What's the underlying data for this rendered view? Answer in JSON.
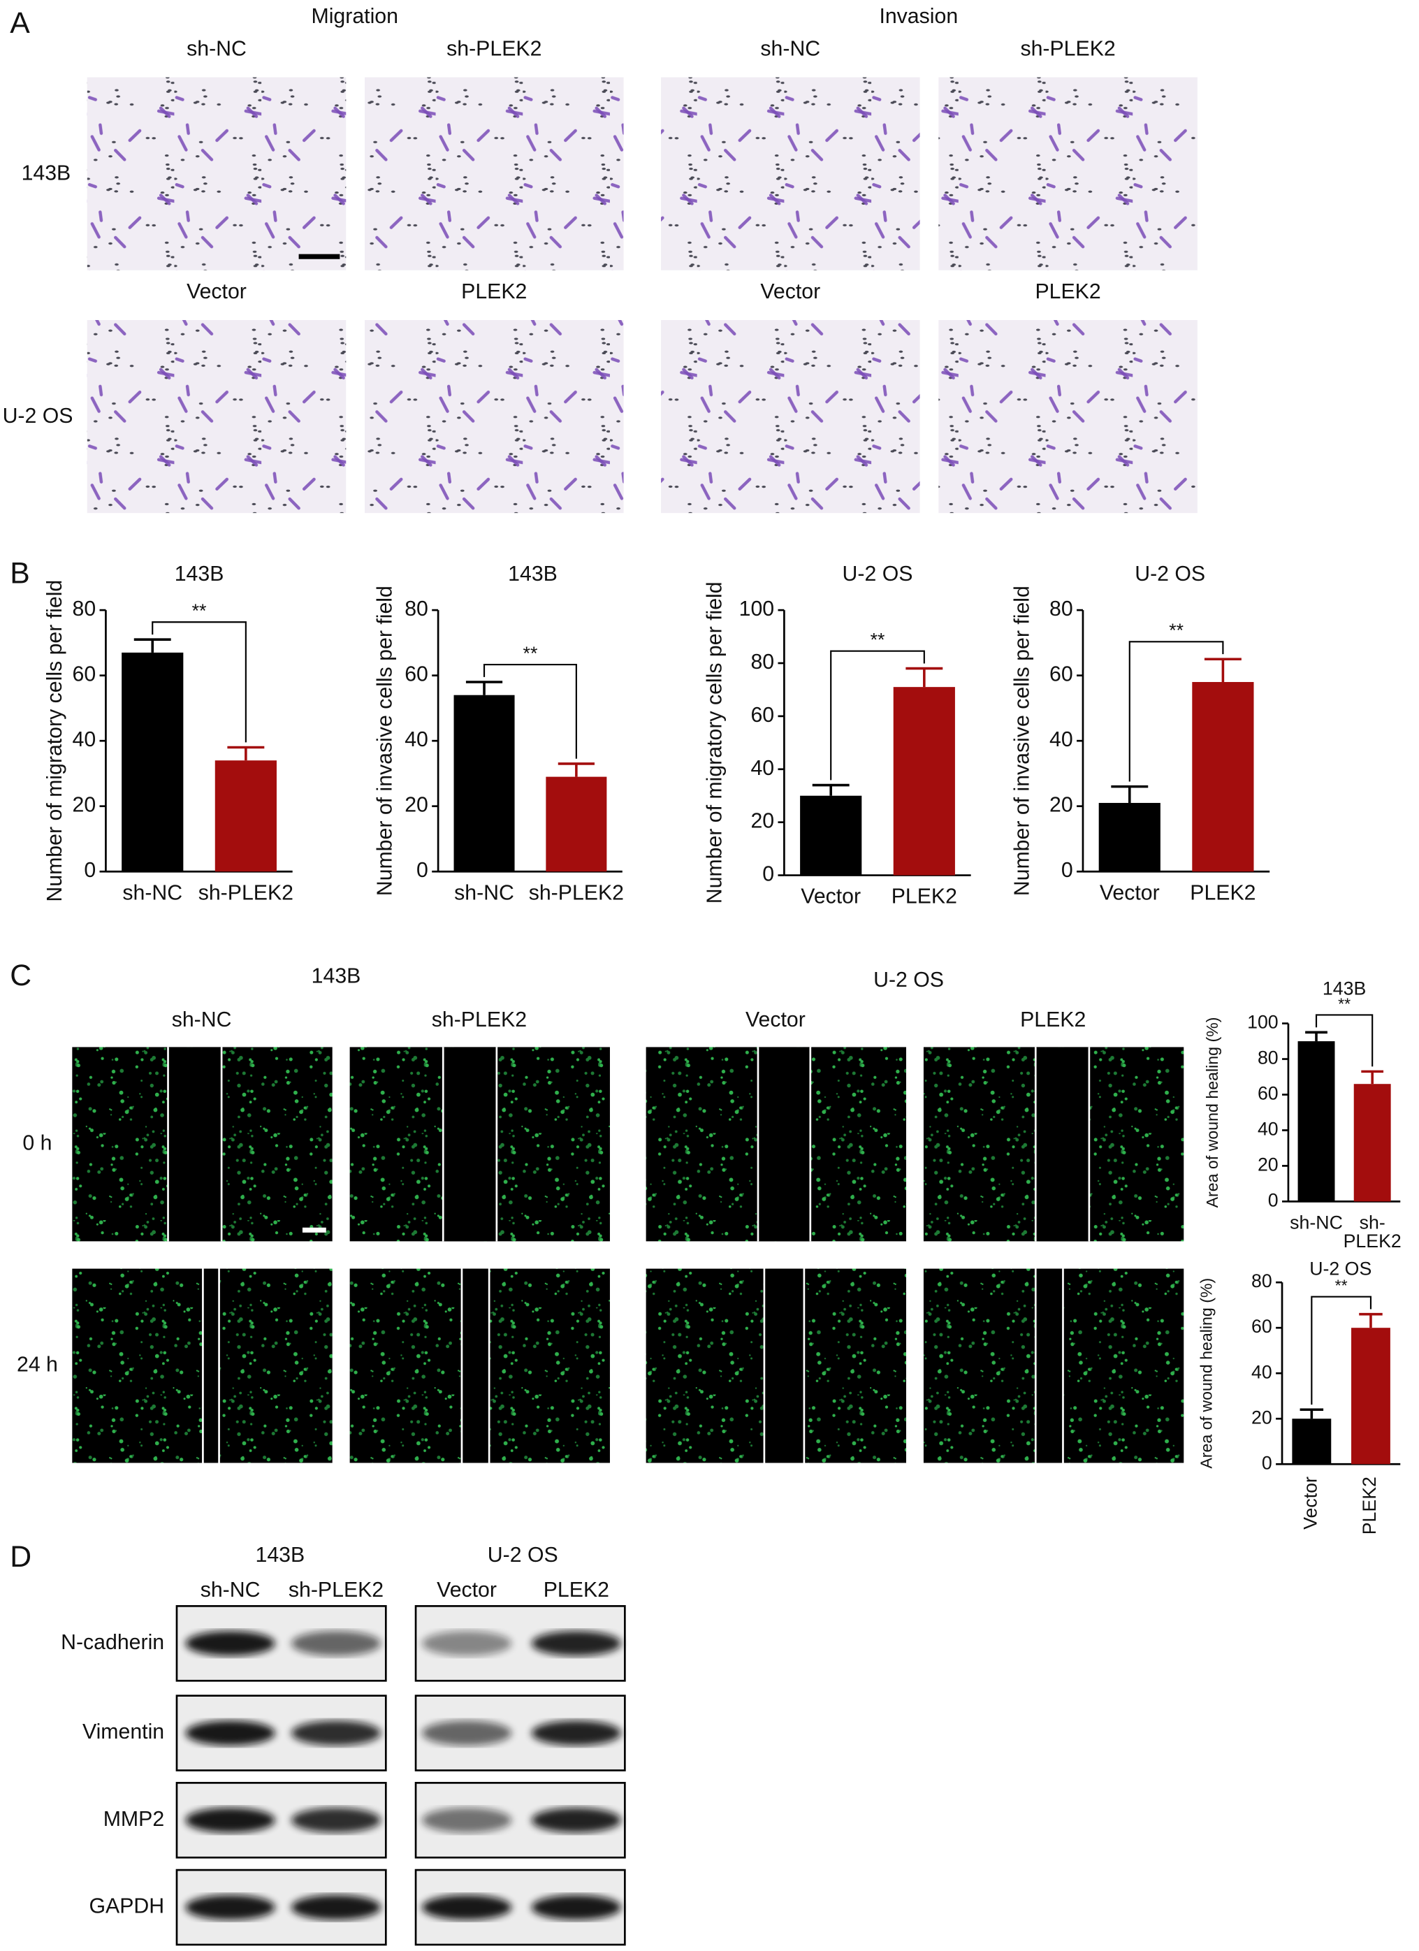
{
  "panel_a": {
    "label": "A",
    "groups": [
      "Migration",
      "Invasion"
    ],
    "rows": [
      {
        "label": "143B",
        "columns": [
          "sh-NC",
          "sh-PLEK2",
          "sh-NC",
          "sh-PLEK2"
        ]
      },
      {
        "label": "U-2 OS",
        "columns": [
          "Vector",
          "PLEK2",
          "Vector",
          "PLEK2"
        ]
      }
    ]
  },
  "panel_b": {
    "label": "B"
  },
  "panel_c": {
    "label": "C",
    "groups": [
      "143B",
      "U-2 OS"
    ],
    "columns": [
      "sh-NC",
      "sh-PLEK2",
      "Vector",
      "PLEK2"
    ],
    "rows": [
      "0 h",
      "24 h"
    ]
  },
  "panel_d": {
    "label": "D",
    "groups": [
      "143B",
      "U-2 OS"
    ],
    "lanes": [
      "sh-NC",
      "sh-PLEK2",
      "Vector",
      "PLEK2"
    ],
    "proteins": [
      "N-cadherin",
      "Vimentin",
      "MMP2",
      "GAPDH"
    ]
  },
  "chart_data": [
    {
      "type": "bar",
      "title": "143B",
      "y_label": "Number of migratory cells per field",
      "categories": [
        "sh-NC",
        "sh-PLEK2"
      ],
      "values": [
        67,
        34
      ],
      "errors": [
        4,
        4
      ],
      "colors": [
        "#000000",
        "#a30d0d"
      ],
      "ylim": [
        0,
        80
      ],
      "yticks": [
        0,
        20,
        40,
        60,
        80
      ],
      "annotation": "**"
    },
    {
      "type": "bar",
      "title": "143B",
      "y_label": "Number of invasive cells per field",
      "categories": [
        "sh-NC",
        "sh-PLEK2"
      ],
      "values": [
        54,
        29
      ],
      "errors": [
        4,
        4
      ],
      "colors": [
        "#000000",
        "#a30d0d"
      ],
      "ylim": [
        0,
        80
      ],
      "yticks": [
        0,
        20,
        40,
        60,
        80
      ],
      "annotation": "**"
    },
    {
      "type": "bar",
      "title": "U-2 OS",
      "y_label": "Number of migratory cells per field",
      "categories": [
        "Vector",
        "PLEK2"
      ],
      "values": [
        30,
        71
      ],
      "errors": [
        4,
        7
      ],
      "colors": [
        "#000000",
        "#a30d0d"
      ],
      "ylim": [
        0,
        100
      ],
      "yticks": [
        0,
        20,
        40,
        60,
        80,
        100
      ],
      "annotation": "**"
    },
    {
      "type": "bar",
      "title": "U-2 OS",
      "y_label": "Number of invasive cells per field",
      "categories": [
        "Vector",
        "PLEK2"
      ],
      "values": [
        21,
        58
      ],
      "errors": [
        5,
        7
      ],
      "colors": [
        "#000000",
        "#a30d0d"
      ],
      "ylim": [
        0,
        80
      ],
      "yticks": [
        0,
        20,
        40,
        60,
        80
      ],
      "annotation": "**"
    },
    {
      "type": "bar",
      "title": "143B",
      "y_label": "Area of wound healing (%)",
      "categories": [
        "sh-NC",
        "sh-PLEK2"
      ],
      "values": [
        90,
        66
      ],
      "errors": [
        5,
        7
      ],
      "colors": [
        "#000000",
        "#a30d0d"
      ],
      "ylim": [
        0,
        100
      ],
      "yticks": [
        0,
        20,
        40,
        60,
        80,
        100
      ],
      "annotation": "**"
    },
    {
      "type": "bar",
      "title": "U-2 OS",
      "y_label": "Area of wound healing (%)",
      "categories": [
        "Vector",
        "PLEK2"
      ],
      "values": [
        20,
        60
      ],
      "errors": [
        4,
        6
      ],
      "colors": [
        "#000000",
        "#a30d0d"
      ],
      "ylim": [
        0,
        80
      ],
      "yticks": [
        0,
        20,
        40,
        60,
        80
      ],
      "annotation": "**",
      "xtick_rotation": -90
    }
  ]
}
